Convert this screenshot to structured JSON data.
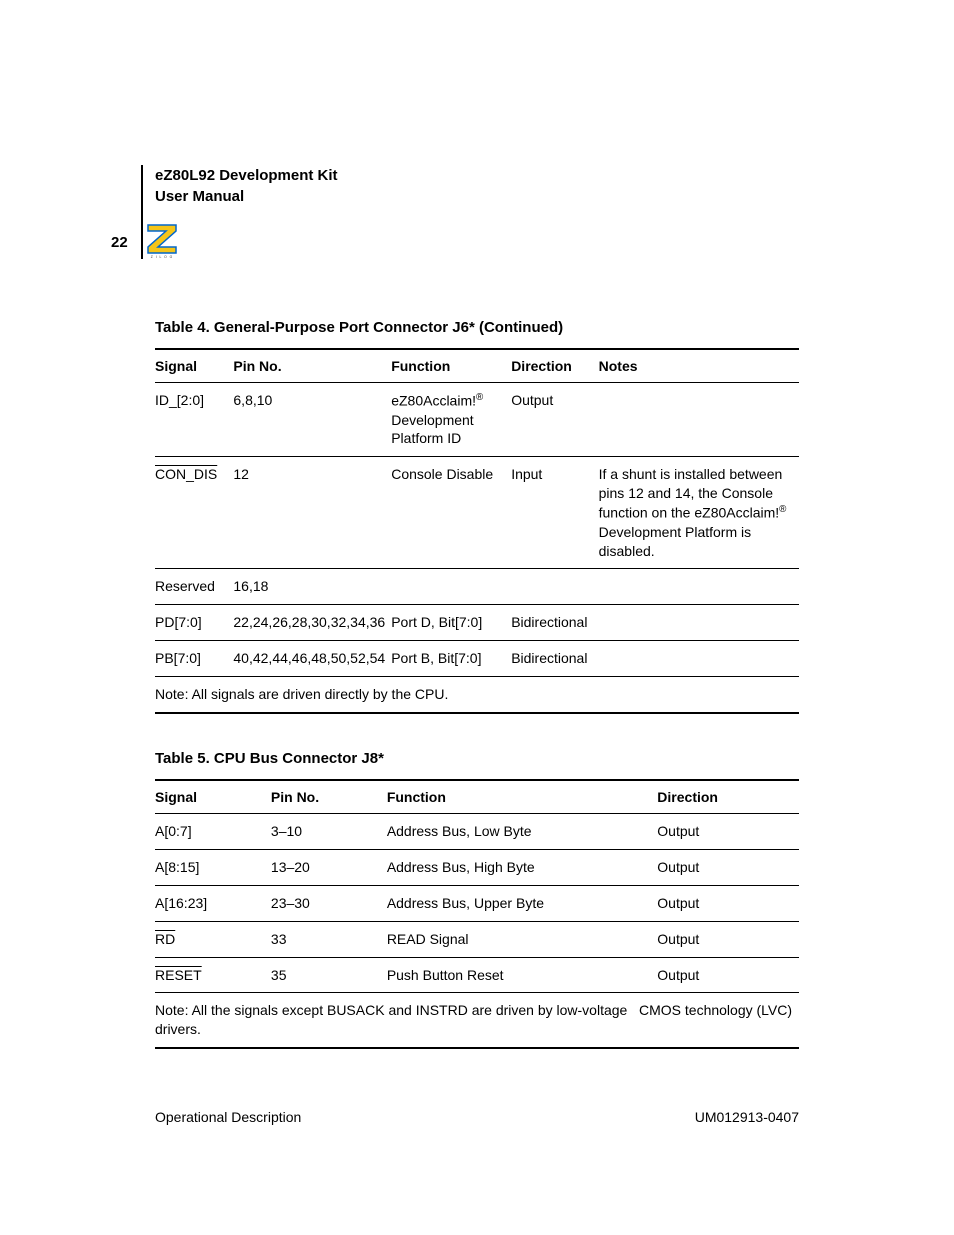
{
  "header": {
    "title_line1": "eZ80L92 Development Kit",
    "title_line2": "User Manual",
    "page_number": "22",
    "logo_letter": "Z",
    "logo_sub": "Z I L O G"
  },
  "table1": {
    "title": "Table 4. General-Purpose Port Connector J6* (Continued)",
    "columns": [
      "Signal",
      "Pin No.",
      "Function",
      "Direction",
      "Notes"
    ],
    "rows": [
      {
        "signal": "ID_[2:0]",
        "pin": "6,8,10",
        "function_html": "eZ80Acclaim!<sup>®</sup> Development Platform ID",
        "direction": "Output",
        "notes_html": ""
      },
      {
        "signal_html": "<span class=\"overline\">CON_DIS</span>",
        "pin": "12",
        "function_html": "Console Disable",
        "direction": "Input",
        "notes_html": "If a shunt is installed between pins 12 and 14, the Console function on the eZ80Acclaim!<sup>®</sup> Development Platform is disabled."
      },
      {
        "signal": "Reserved",
        "pin": "16,18",
        "function_html": "",
        "direction": "",
        "notes_html": ""
      },
      {
        "signal": "PD[7:0]",
        "pin": "22,24,26,28,30,32,34,36",
        "function_html": "Port D, Bit[7:0]",
        "direction": "Bidirectional",
        "notes_html": ""
      },
      {
        "signal": "PB[7:0]",
        "pin": "40,42,44,46,48,50,52,54",
        "function_html": "Port B, Bit[7:0]",
        "direction": "Bidirectional",
        "notes_html": ""
      }
    ],
    "note": "Note: All signals are driven directly by the CPU."
  },
  "table2": {
    "title": "Table 5. CPU Bus Connector J8*",
    "columns": [
      "Signal",
      "Pin No.",
      "Function",
      "Direction"
    ],
    "rows": [
      {
        "signal": "A[0:7]",
        "pin": "3–10",
        "function": "Address Bus, Low Byte",
        "direction": "Output"
      },
      {
        "signal": "A[8:15]",
        "pin": "13–20",
        "function": "Address Bus, High Byte",
        "direction": "Output"
      },
      {
        "signal": "A[16:23]",
        "pin": "23–30",
        "function": "Address Bus, Upper Byte",
        "direction": "Output"
      },
      {
        "signal_html": "<span class=\"overline\">RD</span>",
        "pin": "33",
        "function": "READ Signal",
        "direction": "Output"
      },
      {
        "signal_html": "<span class=\"overline\">RESET</span>",
        "pin": "35",
        "function": "Push Button Reset",
        "direction": "Output"
      }
    ],
    "note": "Note: All the signals except BUSACK and INSTRD are driven by low-voltage   CMOS technology (LVC) drivers."
  },
  "footer": {
    "section": "Operational Description",
    "docnum": "UM012913-0407"
  }
}
